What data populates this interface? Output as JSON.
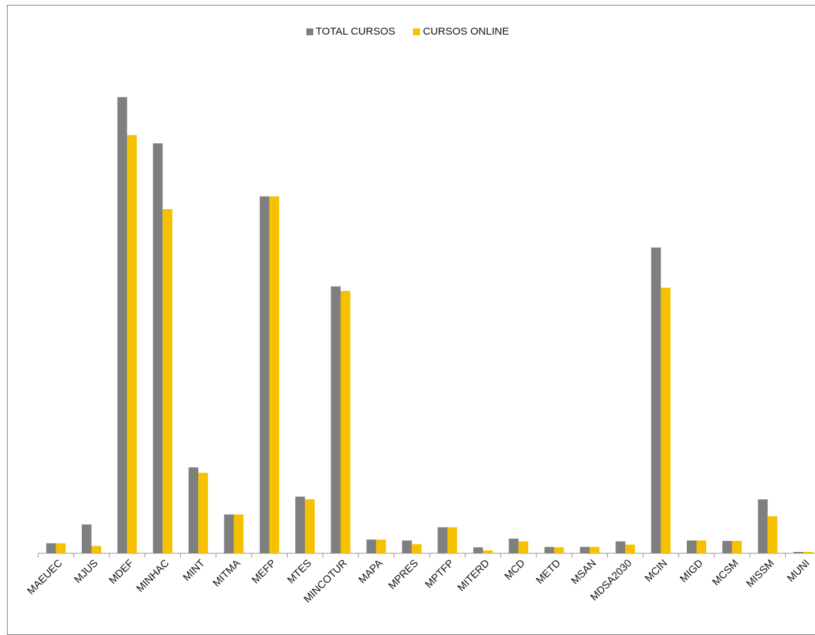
{
  "chart_data": {
    "type": "bar",
    "title": "",
    "xlabel": "",
    "ylabel": "",
    "ylim": [
      0,
      100
    ],
    "grid": false,
    "legend_position": "top-center",
    "categories": [
      "MAEUEC",
      "MJUS",
      "MDEF",
      "MINHAC",
      "MINT",
      "MITMA",
      "MEFP",
      "MTES",
      "MINCOTUR",
      "MAPA",
      "MPRES",
      "MPTFP",
      "MITERD",
      "MCD",
      "METD",
      "MSAN",
      "MDSA2030",
      "MCIN",
      "MIGD",
      "MCSM",
      "MISSM",
      "MUNI"
    ],
    "series": [
      {
        "name": "TOTAL CURSOS",
        "color": "#7f7f7f",
        "values": [
          2.2,
          6.3,
          99.8,
          89.7,
          18.8,
          8.5,
          78.1,
          12.4,
          58.4,
          3.0,
          2.8,
          5.7,
          1.3,
          3.2,
          1.4,
          1.4,
          2.6,
          66.9,
          2.8,
          2.7,
          11.8,
          0.3
        ]
      },
      {
        "name": "CURSOS ONLINE",
        "color": "#f5c100",
        "values": [
          2.2,
          1.6,
          91.5,
          75.3,
          17.6,
          8.5,
          78.1,
          11.8,
          57.4,
          3.0,
          2.0,
          5.7,
          0.6,
          2.6,
          1.3,
          1.4,
          1.9,
          58.1,
          2.8,
          2.7,
          8.1,
          0.3
        ]
      }
    ]
  }
}
